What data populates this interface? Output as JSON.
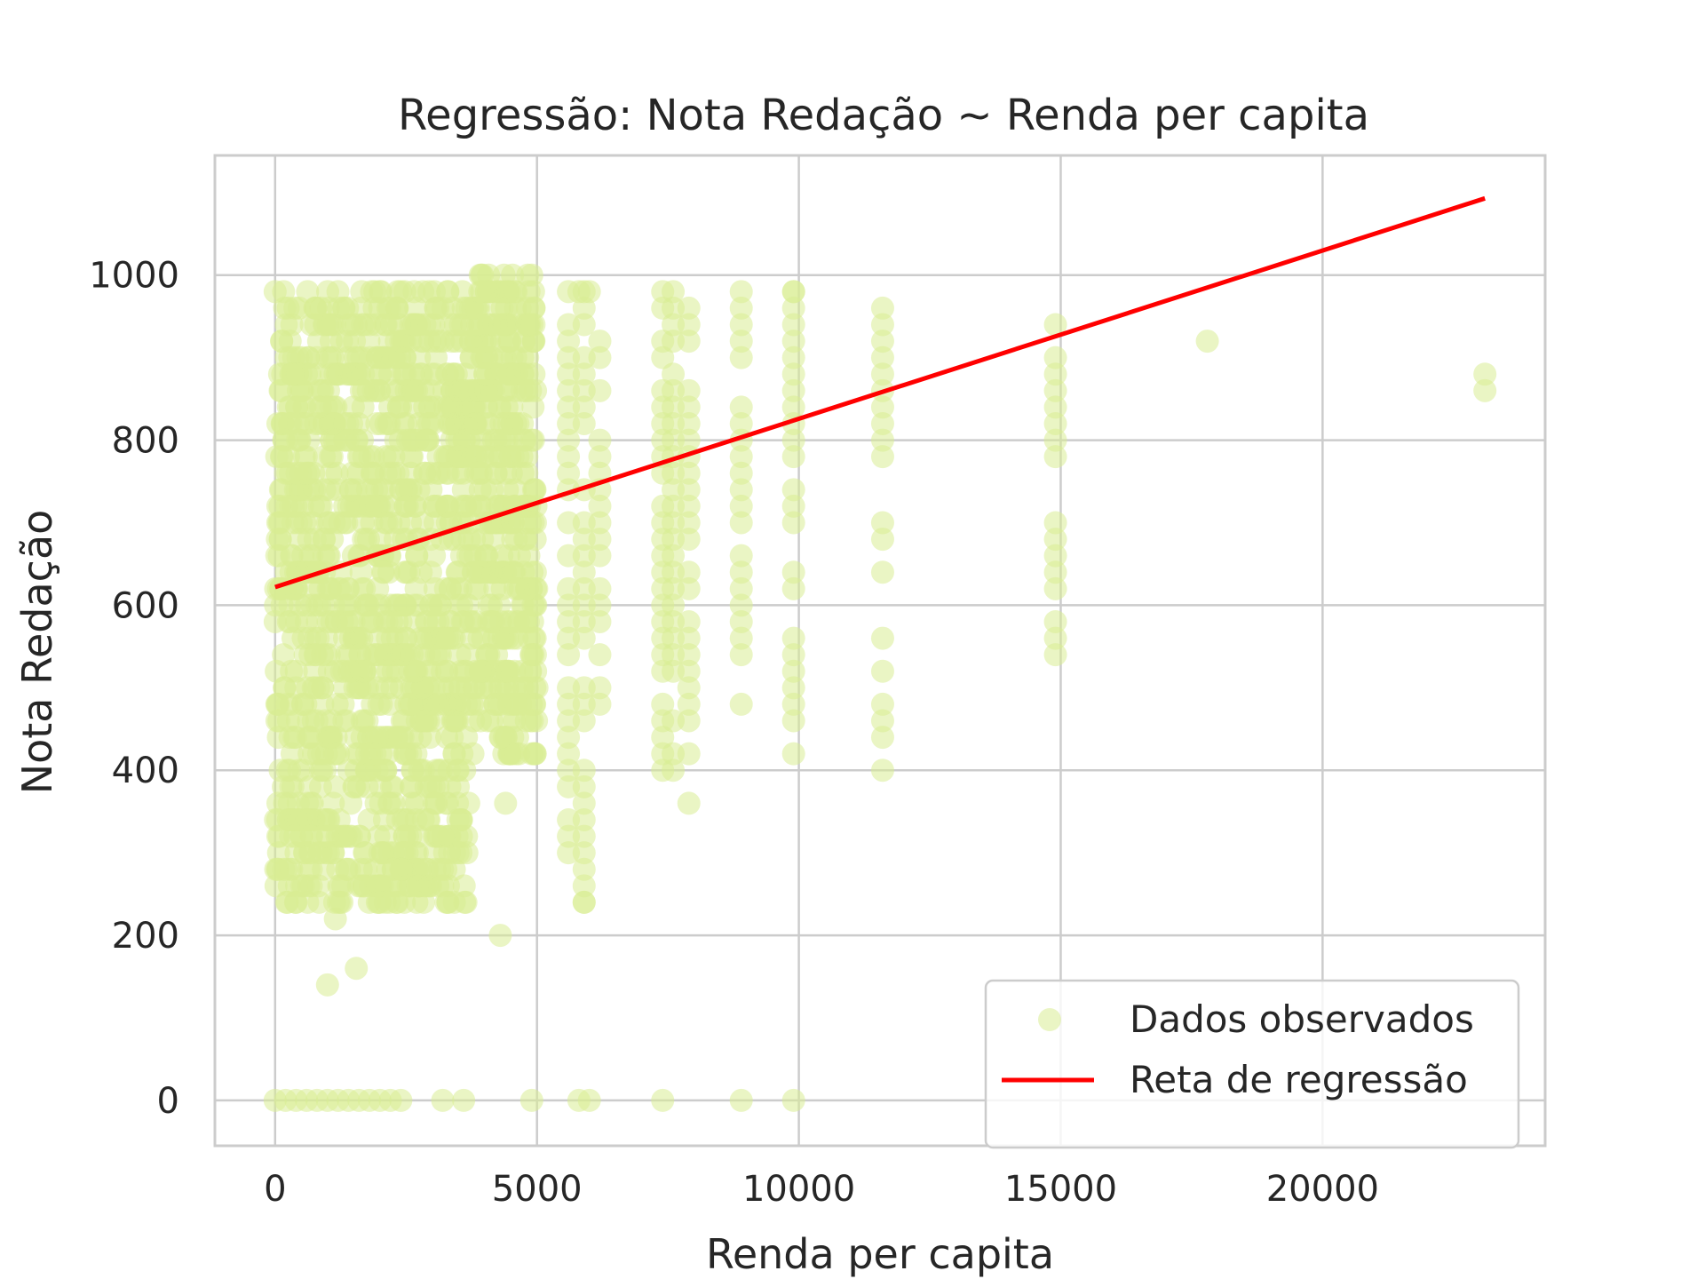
{
  "chart_data": {
    "type": "scatter",
    "title": "Regressão: Nota Redação ~ Renda per capita",
    "xlabel": "Renda per capita",
    "ylabel": "Nota Redação",
    "xlim": [
      -1150,
      24250
    ],
    "ylim": [
      -55,
      1145
    ],
    "xticks": [
      0,
      5000,
      10000,
      15000,
      20000
    ],
    "yticks": [
      0,
      200,
      400,
      600,
      800,
      1000
    ],
    "grid": true,
    "legend_position": "bottom-right",
    "colors": {
      "scatter": "#d8ec94",
      "line": "#ff0000",
      "grid": "#cccccc",
      "axes": "#cccccc",
      "text": "#262626"
    },
    "series": [
      {
        "name": "Dados observados",
        "kind": "scatter",
        "opacity": 0.55,
        "dense_regions": [
          {
            "x": [
              0,
              3700
            ],
            "y": [
              240,
              980
            ],
            "note": ""
          },
          {
            "x": [
              3700,
              5000
            ],
            "y": [
              420,
              1000
            ],
            "note": ""
          }
        ],
        "columns": [
          {
            "x": 5600,
            "y": [
              300,
              980
            ]
          },
          {
            "x": 5900,
            "y": [
              240,
              980
            ]
          },
          {
            "x": 6200,
            "y": [
              480,
              920
            ]
          },
          {
            "x": 7400,
            "y": [
              360,
              980
            ]
          },
          {
            "x": 7600,
            "y": [
              400,
              960
            ]
          },
          {
            "x": 7900,
            "y": [
              360,
              960
            ]
          },
          {
            "x": 8900,
            "y": [
              480,
              980
            ]
          },
          {
            "x": 9900,
            "y": [
              420,
              980
            ]
          },
          {
            "x": 11600,
            "y": [
              400,
              960
            ]
          },
          {
            "x": 14900,
            "y": [
              540,
              960
            ]
          }
        ],
        "points": [
          [
            0,
            0
          ],
          [
            200,
            0
          ],
          [
            400,
            0
          ],
          [
            600,
            0
          ],
          [
            800,
            0
          ],
          [
            1000,
            0
          ],
          [
            1200,
            0
          ],
          [
            1400,
            0
          ],
          [
            1600,
            0
          ],
          [
            1800,
            0
          ],
          [
            2000,
            0
          ],
          [
            2200,
            0
          ],
          [
            2400,
            0
          ],
          [
            3200,
            0
          ],
          [
            3600,
            0
          ],
          [
            4900,
            0
          ],
          [
            5800,
            0
          ],
          [
            6000,
            0
          ],
          [
            7400,
            0
          ],
          [
            8900,
            0
          ],
          [
            9900,
            0
          ],
          [
            1000,
            140
          ],
          [
            1550,
            160
          ],
          [
            4300,
            200
          ],
          [
            1150,
            220
          ],
          [
            5900,
            240
          ],
          [
            3300,
            240
          ],
          [
            3200,
            260
          ],
          [
            2000,
            240
          ],
          [
            1700,
            260
          ],
          [
            2400,
            280
          ],
          [
            3200,
            320
          ],
          [
            4400,
            360
          ],
          [
            2600,
            380
          ],
          [
            4600,
            420
          ],
          [
            4300,
            440
          ],
          [
            17800,
            920
          ],
          [
            23100,
            880
          ],
          [
            23100,
            860
          ],
          [
            4900,
            1000
          ],
          [
            0,
            980
          ],
          [
            1200,
            980
          ],
          [
            2000,
            980
          ],
          [
            2400,
            980
          ],
          [
            3300,
            980
          ],
          [
            4400,
            980
          ],
          [
            4600,
            980
          ],
          [
            5600,
            980
          ],
          [
            5800,
            980
          ],
          [
            6000,
            980
          ],
          [
            7400,
            980
          ],
          [
            7600,
            980
          ],
          [
            8900,
            980
          ],
          [
            9900,
            980
          ]
        ]
      },
      {
        "name": "Reta de regressão",
        "kind": "line",
        "x": [
          0,
          23100
        ],
        "y": [
          622,
          1093
        ]
      }
    ]
  }
}
